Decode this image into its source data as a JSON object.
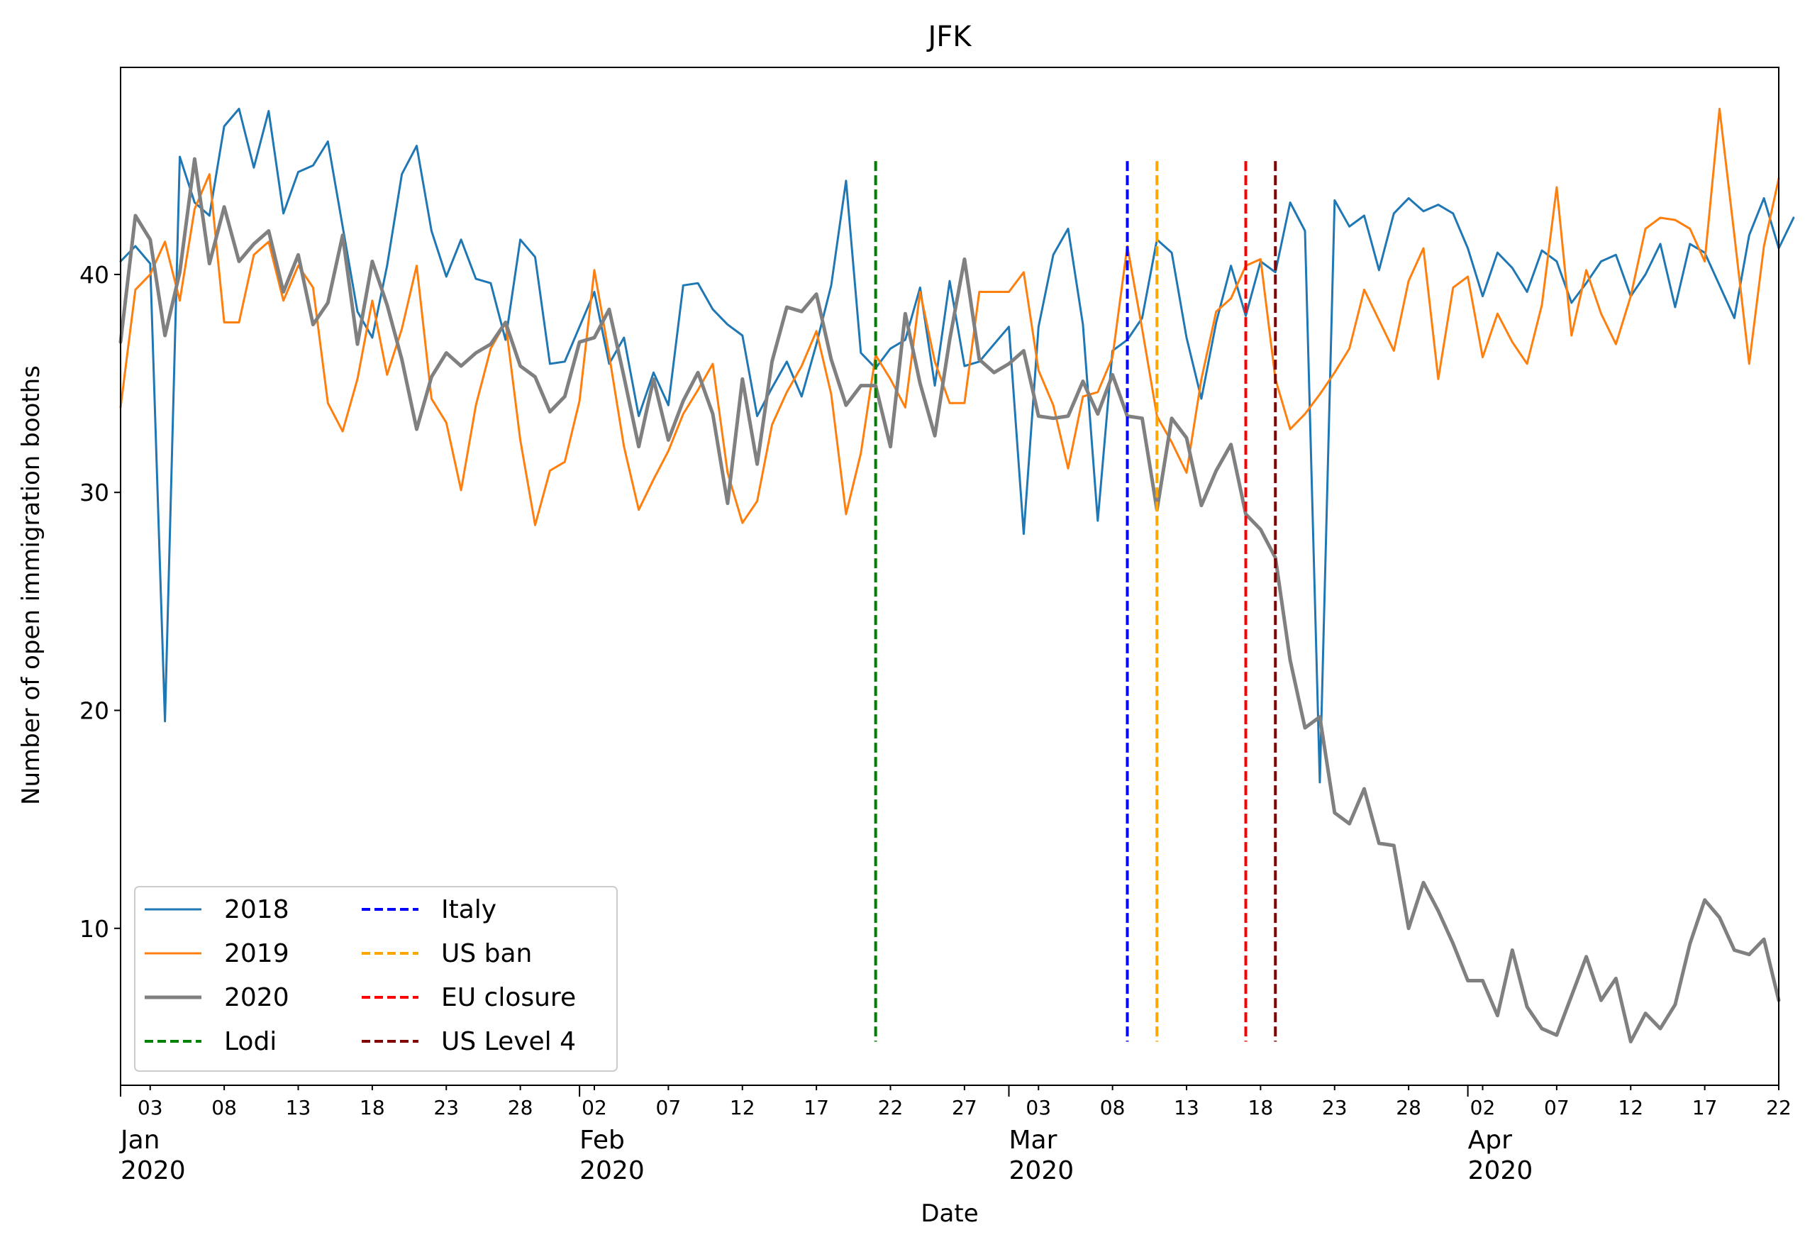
{
  "chart_data": {
    "type": "line",
    "title": "JFK",
    "xlabel": "Date",
    "ylabel": "Number of open immigration booths",
    "ylim": [
      2.8,
      49.5
    ],
    "xlim_days": [
      0,
      112
    ],
    "yticks": [
      10,
      20,
      30,
      40
    ],
    "ytick_labels": [
      "10",
      "20",
      "30",
      "40"
    ],
    "day_ticks": [
      {
        "day": 2,
        "label": "03"
      },
      {
        "day": 7,
        "label": "08"
      },
      {
        "day": 12,
        "label": "13"
      },
      {
        "day": 17,
        "label": "18"
      },
      {
        "day": 22,
        "label": "23"
      },
      {
        "day": 27,
        "label": "28"
      },
      {
        "day": 32,
        "label": "02"
      },
      {
        "day": 37,
        "label": "07"
      },
      {
        "day": 42,
        "label": "12"
      },
      {
        "day": 47,
        "label": "17"
      },
      {
        "day": 52,
        "label": "22"
      },
      {
        "day": 57,
        "label": "27"
      },
      {
        "day": 62,
        "label": "03"
      },
      {
        "day": 67,
        "label": "08"
      },
      {
        "day": 72,
        "label": "13"
      },
      {
        "day": 77,
        "label": "18"
      },
      {
        "day": 82,
        "label": "23"
      },
      {
        "day": 87,
        "label": "28"
      },
      {
        "day": 92,
        "label": "02"
      },
      {
        "day": 97,
        "label": "07"
      },
      {
        "day": 102,
        "label": "12"
      },
      {
        "day": 107,
        "label": "17"
      },
      {
        "day": 112,
        "label": "22"
      }
    ],
    "month_ticks": [
      {
        "day": 0,
        "month": "Jan",
        "year": "2020"
      },
      {
        "day": 31,
        "month": "Feb",
        "year": "2020"
      },
      {
        "day": 60,
        "month": "Mar",
        "year": "2020"
      },
      {
        "day": 91,
        "month": "Apr",
        "year": "2020"
      }
    ],
    "series": [
      {
        "name": "2018",
        "color": "#1f77b4",
        "width": 3,
        "values": [
          40.6,
          41.3,
          40.5,
          19.5,
          45.4,
          43.3,
          42.7,
          46.8,
          47.6,
          44.9,
          47.5,
          42.8,
          44.7,
          45.0,
          46.1,
          42.2,
          38.3,
          37.1,
          40.4,
          44.6,
          45.9,
          42.0,
          39.9,
          41.6,
          39.8,
          39.6,
          37.0,
          41.6,
          40.8,
          35.9,
          36.0,
          37.6,
          39.2,
          35.9,
          37.1,
          33.5,
          35.5,
          34.0,
          39.5,
          39.6,
          38.4,
          37.7,
          37.2,
          33.5,
          34.8,
          36.0,
          34.4,
          36.8,
          39.5,
          44.3,
          36.4,
          35.7,
          36.6,
          37.0,
          39.4,
          34.9,
          39.7,
          35.8,
          36.0,
          36.8,
          37.6,
          28.1,
          37.6,
          40.9,
          42.1,
          37.7,
          28.7,
          36.5,
          37.0,
          38.0,
          41.6,
          41.0,
          37.1,
          34.3,
          37.8,
          40.4,
          38.1,
          40.6,
          40.1,
          43.3,
          42.0,
          16.7,
          43.4,
          42.2,
          42.7,
          40.2,
          42.8,
          43.5,
          42.9,
          43.2,
          42.8,
          41.2,
          39.0,
          41.0,
          40.3,
          39.2,
          41.1,
          40.6,
          38.7,
          39.6,
          40.6,
          40.9,
          39.0,
          40.0,
          41.4,
          38.5,
          41.4,
          41.0,
          39.5,
          38.0,
          41.8,
          43.5,
          41.2,
          42.6
        ]
      },
      {
        "name": "2019",
        "color": "#ff7f0e",
        "width": 3,
        "values": [
          33.9,
          39.3,
          40.0,
          41.5,
          38.8,
          43.0,
          44.6,
          37.8,
          37.8,
          40.9,
          41.5,
          38.8,
          40.4,
          39.4,
          34.1,
          32.8,
          35.2,
          38.8,
          35.4,
          37.5,
          40.4,
          34.3,
          33.2,
          30.1,
          34.0,
          36.6,
          37.8,
          32.4,
          28.5,
          31.0,
          31.4,
          34.2,
          40.2,
          36.3,
          32.1,
          29.2,
          30.6,
          31.9,
          33.6,
          34.7,
          35.9,
          30.9,
          28.6,
          29.6,
          33.1,
          34.6,
          35.8,
          37.4,
          34.5,
          29.0,
          31.8,
          36.3,
          35.2,
          33.9,
          39.2,
          36.0,
          34.1,
          34.1,
          39.2,
          39.2,
          39.2,
          40.1,
          35.6,
          34.0,
          31.1,
          34.4,
          34.6,
          36.2,
          41.3,
          37.5,
          33.5,
          32.3,
          30.9,
          35.2,
          38.3,
          38.9,
          40.4,
          40.7,
          35.2,
          32.9,
          33.6,
          34.5,
          35.5,
          36.6,
          39.3,
          37.9,
          36.5,
          39.7,
          41.2,
          35.2,
          39.4,
          39.9,
          36.2,
          38.2,
          36.9,
          35.9,
          38.6,
          44.0,
          37.2,
          40.2,
          38.2,
          36.8,
          39.0,
          42.1,
          42.6,
          42.5,
          42.1,
          40.6,
          47.6,
          41.8,
          35.9,
          41.3,
          44.4
        ]
      },
      {
        "name": "2020",
        "color": "#808080",
        "width": 5,
        "values": [
          36.9,
          42.7,
          41.6,
          37.2,
          40.1,
          45.3,
          40.5,
          43.1,
          40.6,
          41.4,
          42.0,
          39.2,
          40.9,
          37.7,
          38.7,
          41.8,
          36.8,
          40.6,
          38.6,
          36.1,
          32.9,
          35.3,
          36.4,
          35.8,
          36.4,
          36.8,
          37.8,
          35.8,
          35.3,
          33.7,
          34.4,
          36.9,
          37.1,
          38.4,
          35.3,
          32.1,
          35.2,
          32.4,
          34.2,
          35.5,
          33.6,
          29.5,
          35.2,
          31.3,
          36.0,
          38.5,
          38.3,
          39.1,
          36.1,
          34.0,
          34.9,
          34.9,
          32.1,
          38.2,
          35.0,
          32.6,
          37.0,
          40.7,
          36.1,
          35.5,
          35.9,
          36.5,
          33.5,
          33.4,
          33.5,
          35.1,
          33.6,
          35.4,
          33.5,
          33.4,
          29.2,
          33.4,
          32.5,
          29.4,
          31.0,
          32.2,
          29.0,
          28.3,
          27.0,
          22.3,
          19.2,
          19.7,
          15.3,
          14.8,
          16.4,
          13.9,
          13.8,
          10.0,
          12.1,
          10.8,
          9.3,
          7.6,
          7.6,
          6.0,
          9.0,
          6.4,
          5.4,
          5.1,
          6.9,
          8.7,
          6.7,
          7.7,
          4.8,
          6.1,
          5.4,
          6.5,
          9.3,
          11.3,
          10.5,
          9.0,
          8.8,
          9.5,
          6.7
        ]
      }
    ],
    "events": [
      {
        "name": "Lodi",
        "day": 51,
        "color": "#008000"
      },
      {
        "name": "Italy",
        "day": 68,
        "color": "#0000ff"
      },
      {
        "name": "US ban",
        "day": 70,
        "color": "#ffa500"
      },
      {
        "name": "EU closure",
        "day": 76,
        "color": "#ff0000"
      },
      {
        "name": "US Level 4",
        "day": 78,
        "color": "#800000"
      }
    ],
    "event_range": [
      4.8,
      45.2
    ],
    "legend": {
      "placement": "lower-left",
      "columns": [
        [
          {
            "label": "2018",
            "ref": "2018"
          },
          {
            "label": "2019",
            "ref": "2019"
          },
          {
            "label": "2020",
            "ref": "2020"
          },
          {
            "label": "Lodi",
            "ref": "Lodi"
          }
        ],
        [
          {
            "label": "Italy",
            "ref": "Italy"
          },
          {
            "label": "US ban",
            "ref": "US ban"
          },
          {
            "label": "EU closure",
            "ref": "EU closure"
          },
          {
            "label": "US Level 4",
            "ref": "US Level 4"
          }
        ]
      ]
    }
  }
}
